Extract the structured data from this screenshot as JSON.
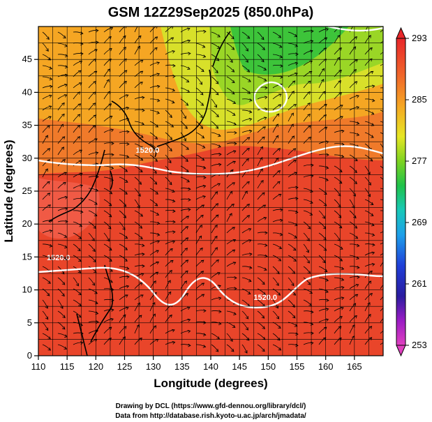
{
  "chart_data": {
    "type": "heatmap",
    "title": "GSM 12Z29Sep2025 (850.0hPa)",
    "xlabel": "Longitude (degrees)",
    "ylabel": "Latitude  (degrees)",
    "xlim": [
      110,
      170
    ],
    "ylim": [
      0,
      50
    ],
    "x_ticks": [
      110,
      115,
      120,
      125,
      130,
      135,
      140,
      145,
      150,
      155,
      160,
      165
    ],
    "y_ticks": [
      0,
      5,
      10,
      15,
      20,
      25,
      30,
      35,
      40,
      45
    ],
    "grid": true,
    "colorbar": {
      "ticks": [
        293,
        285,
        277,
        269,
        261,
        253
      ],
      "min": 253,
      "max": 293
    },
    "contour_labels": [
      {
        "text": "1520.0",
        "lon": 129,
        "lat": 30.8
      },
      {
        "text": "1520.0",
        "lon": 113.5,
        "lat": 14.5
      },
      {
        "text": "1520.0",
        "lon": 149.5,
        "lat": 8.5
      }
    ]
  },
  "credits": [
    "Drawing by DCL (https://www.gfd-dennou.org/library/dcl/)",
    "Data from http://database.rish.kyoto-u.ac.jp/arch/jmadata/"
  ]
}
